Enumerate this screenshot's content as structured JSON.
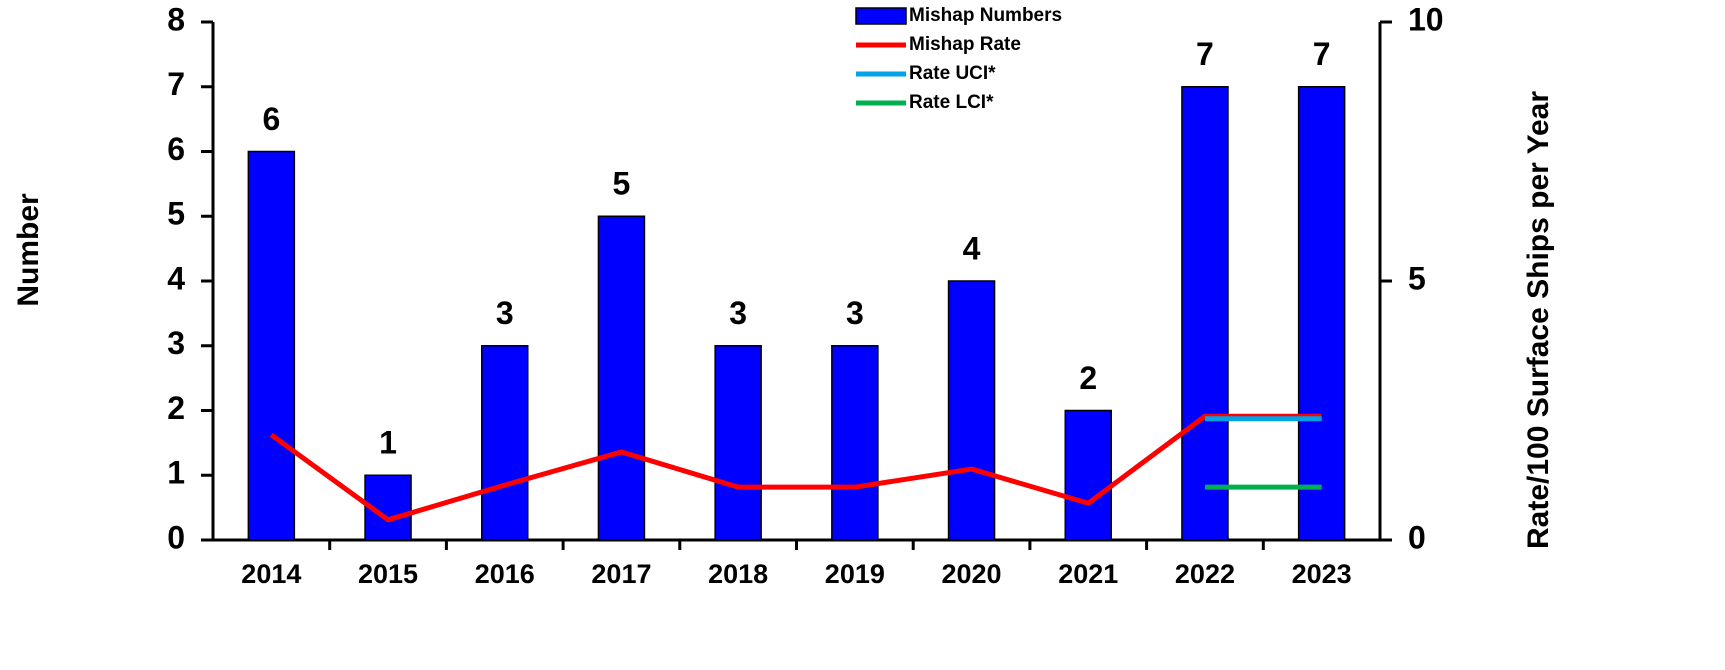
{
  "chart_data": {
    "type": "bar",
    "categories": [
      "2014",
      "2015",
      "2016",
      "2017",
      "2018",
      "2019",
      "2020",
      "2021",
      "2022",
      "2023"
    ],
    "series": [
      {
        "name": "Mishap Numbers",
        "type": "bar",
        "axis": "y",
        "color": "#0000ff",
        "values": [
          6,
          1,
          3,
          5,
          3,
          3,
          4,
          2,
          7,
          7
        ]
      },
      {
        "name": "Mishap Rate",
        "type": "line",
        "axis": "y2",
        "color": "#ff0000",
        "values": [
          2.03,
          0.39,
          1.06,
          1.7,
          1.02,
          1.02,
          1.37,
          0.71,
          2.39,
          2.39
        ]
      },
      {
        "name": "Rate UCI*",
        "type": "line",
        "axis": "y2",
        "color": "#00a2e8",
        "values": [
          null,
          null,
          null,
          null,
          null,
          null,
          null,
          null,
          2.34,
          2.34
        ]
      },
      {
        "name": "Rate LCI*",
        "type": "line",
        "axis": "y2",
        "color": "#00b050",
        "values": [
          null,
          null,
          null,
          null,
          null,
          null,
          null,
          null,
          1.02,
          1.02
        ]
      }
    ],
    "ylabel": "Number",
    "y2label": "Rate/100 Surface Ships per Year",
    "ylim": [
      0,
      8
    ],
    "yticks": [
      0,
      1,
      2,
      3,
      4,
      5,
      6,
      7,
      8
    ],
    "y2lim": [
      0,
      10
    ],
    "y2ticks": [
      0,
      5,
      10
    ],
    "legend": "top"
  }
}
